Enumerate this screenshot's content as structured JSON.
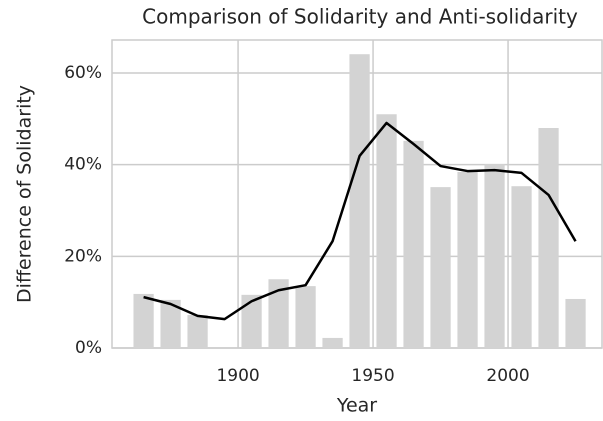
{
  "chart_data": {
    "type": "combo",
    "title": "Comparison of Solidarity and Anti-solidarity",
    "x_label": "Year",
    "y_label": "Difference of Solidarity",
    "x": [
      1865,
      1875,
      1885,
      1895,
      1905,
      1915,
      1925,
      1935,
      1945,
      1955,
      1965,
      1975,
      1985,
      1995,
      2005,
      2015,
      2025
    ],
    "series": [
      {
        "type": "bar",
        "color": "#d3d3d3",
        "values": [
          11.8,
          10.5,
          7.2,
          0,
          11.6,
          15.0,
          13.5,
          2.2,
          64.1,
          51.0,
          45.2,
          35.1,
          38.4,
          40.1,
          35.3,
          48.0,
          10.7
        ]
      },
      {
        "type": "line",
        "color": "#000000",
        "values": [
          11.1,
          9.6,
          7.0,
          6.3,
          10.2,
          12.6,
          13.7,
          23.3,
          41.9,
          49.1,
          44.5,
          39.7,
          38.6,
          38.8,
          38.2,
          33.4,
          23.3
        ]
      }
    ],
    "xlim": [
      1853.3,
      2034.8
    ],
    "xticks": [
      1900,
      1950,
      2000
    ],
    "ylim": [
      0,
      67.2
    ],
    "yticks": [
      {
        "value": 0,
        "label": "0%"
      },
      {
        "value": 20,
        "label": "20%"
      },
      {
        "value": 40,
        "label": "40%"
      },
      {
        "value": 60,
        "label": "60%"
      }
    ],
    "grid": true
  }
}
